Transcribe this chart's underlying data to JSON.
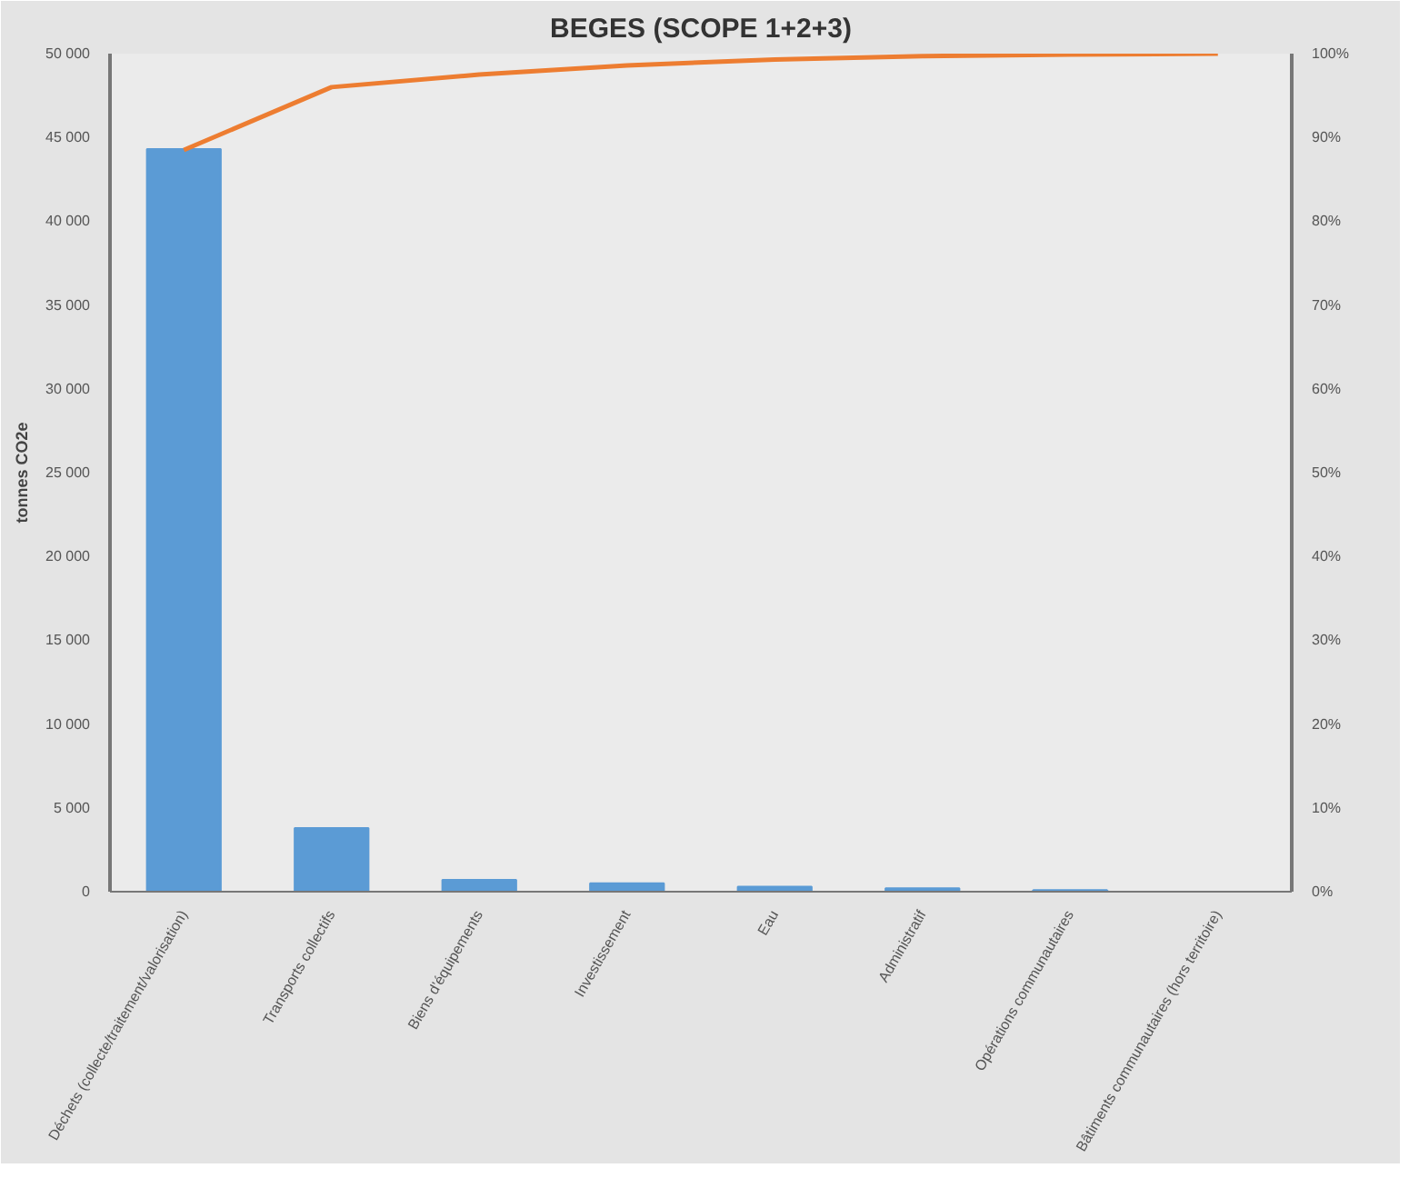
{
  "chart_data": {
    "type": "bar",
    "title": "BEGES (SCOPE 1+2+3)",
    "ylabel": "tonnes CO2e",
    "categories": [
      "Déchets (collecte/traitement/valorisation)",
      "Transports collectifs",
      "Biens d'équipements",
      "Investissement",
      "Eau",
      "Administratif",
      "Opérations communautaires",
      "Bâtiments communautaires (hors territoire)"
    ],
    "series": [
      {
        "color": "#5b9bd5",
        "values": [
          44300,
          3800,
          700,
          500,
          300,
          200,
          100,
          0
        ]
      },
      {
        "type": "line",
        "axis": "y2",
        "color": "#ed7d31",
        "values": [
          88.5,
          96,
          97.5,
          98.6,
          99.3,
          99.7,
          99.9,
          100
        ]
      }
    ],
    "ylim": [
      0,
      50000
    ],
    "yticks": [
      0,
      {
        "value": 5000,
        "label": "5 000"
      },
      {
        "value": 10000,
        "label": "10 000"
      },
      {
        "value": 15000,
        "label": "15 000"
      },
      {
        "value": 20000,
        "label": "20 000"
      },
      {
        "value": 25000,
        "label": "25 000"
      },
      {
        "value": 30000,
        "label": "30 000"
      },
      {
        "value": 35000,
        "label": "35 000"
      },
      {
        "value": 40000,
        "label": "40 000"
      },
      {
        "value": 45000,
        "label": "45 000"
      },
      {
        "value": 50000,
        "label": "50 000"
      }
    ],
    "y2lim": [
      0,
      100
    ],
    "y2ticks": [
      {
        "value": 0,
        "label": "0%"
      },
      {
        "value": 10,
        "label": "10%"
      },
      {
        "value": 20,
        "label": "20%"
      },
      {
        "value": 30,
        "label": "30%"
      },
      {
        "value": 40,
        "label": "40%"
      },
      {
        "value": 50,
        "label": "50%"
      },
      {
        "value": 60,
        "label": "60%"
      },
      {
        "value": 70,
        "label": "70%"
      },
      {
        "value": 80,
        "label": "80%"
      },
      {
        "value": 90,
        "label": "90%"
      },
      {
        "value": 100,
        "label": "100%"
      }
    ],
    "grid": false
  }
}
